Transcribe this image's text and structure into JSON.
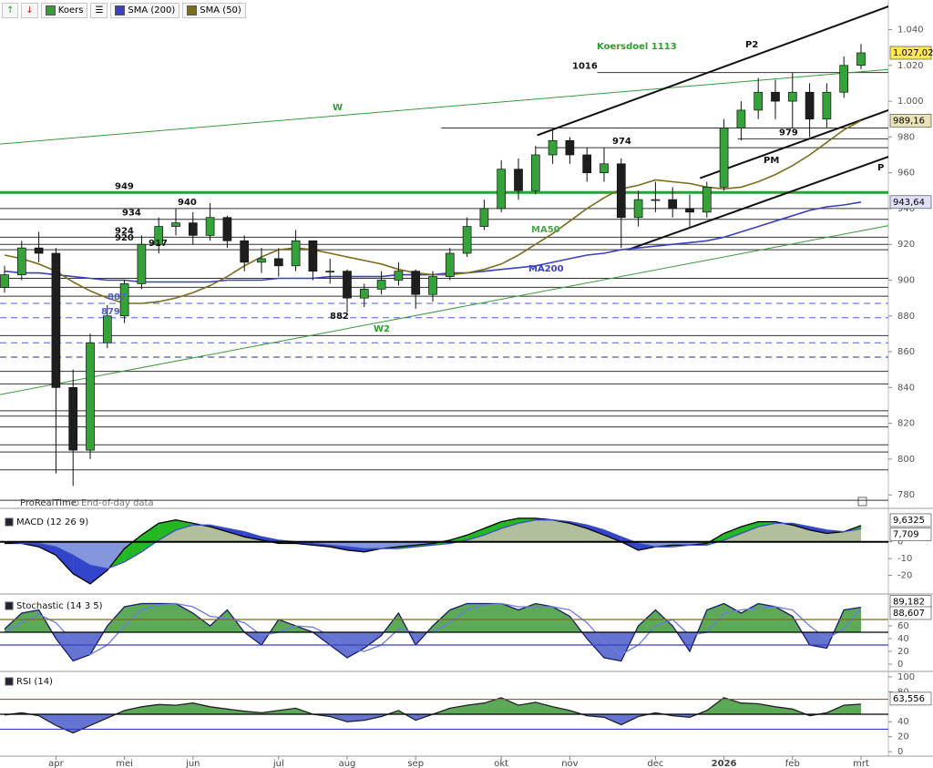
{
  "chart_data": [
    {
      "type": "candlestick",
      "price_label": "Koers",
      "source": "ProRealTime",
      "source_note": "End-of-day data",
      "open": [
        896,
        903,
        918,
        915,
        840,
        805,
        865,
        880,
        898,
        920,
        930,
        932,
        925,
        935,
        922,
        910,
        912,
        908,
        922,
        905,
        905,
        890,
        895,
        900,
        905,
        892,
        902,
        915,
        930,
        940,
        962,
        950,
        970,
        978,
        970,
        960,
        965,
        935,
        945,
        945,
        940,
        938,
        952,
        985,
        995,
        1005,
        1000,
        1005,
        990,
        1005,
        1020
      ],
      "high": [
        908,
        922,
        927,
        918,
        850,
        870,
        886,
        900,
        925,
        935,
        940,
        938,
        943,
        936,
        925,
        918,
        918,
        928,
        922,
        912,
        906,
        898,
        905,
        910,
        906,
        905,
        918,
        935,
        945,
        967,
        968,
        975,
        984,
        980,
        974,
        974,
        968,
        950,
        955,
        952,
        948,
        955,
        990,
        1000,
        1013,
        1012,
        1016,
        1010,
        1010,
        1025,
        1032
      ],
      "low": [
        893,
        900,
        910,
        792,
        785,
        800,
        862,
        876,
        895,
        915,
        925,
        920,
        922,
        918,
        905,
        904,
        902,
        905,
        900,
        898,
        882,
        885,
        892,
        897,
        884,
        888,
        900,
        913,
        928,
        938,
        945,
        948,
        965,
        965,
        955,
        955,
        918,
        930,
        938,
        935,
        930,
        935,
        950,
        978,
        990,
        990,
        985,
        980,
        985,
        1002,
        1018
      ],
      "close": [
        903,
        918,
        915,
        840,
        805,
        865,
        880,
        898,
        920,
        930,
        932,
        925,
        935,
        922,
        910,
        912,
        908,
        922,
        905,
        905,
        890,
        895,
        900,
        905,
        892,
        902,
        915,
        930,
        940,
        962,
        950,
        970,
        978,
        970,
        960,
        965,
        935,
        945,
        945,
        940,
        938,
        952,
        985,
        995,
        1005,
        1000,
        1005,
        990,
        1005,
        1020,
        1027.02
      ],
      "up_color": "#35a33a",
      "down_color": "#1e1e1e",
      "last_label": "1.027,02",
      "last_color": "#ffe94d",
      "overlays": [
        {
          "name": "SMA (200)",
          "color": "#3b3fc0",
          "last_label": "943,64",
          "values": [
            905,
            904,
            904,
            903,
            902,
            901,
            900,
            900,
            899,
            899,
            899,
            899,
            899,
            900,
            900,
            900,
            901,
            901,
            901,
            902,
            902,
            902,
            902,
            903,
            903,
            903,
            904,
            904,
            905,
            906,
            907,
            908,
            910,
            912,
            914,
            915,
            917,
            918,
            919,
            920,
            921,
            922,
            924,
            927,
            930,
            933,
            936,
            939,
            941,
            942,
            943.64
          ]
        },
        {
          "name": "SMA (50)",
          "color": "#7b6d1e",
          "last_label": "989,16",
          "values": [
            914,
            912,
            909,
            905,
            899,
            894,
            890,
            887,
            887,
            888,
            890,
            893,
            897,
            902,
            908,
            913,
            917,
            918,
            917,
            915,
            913,
            911,
            909,
            906,
            904,
            903,
            903,
            904,
            906,
            909,
            914,
            920,
            926,
            933,
            940,
            946,
            951,
            953,
            956,
            955,
            954,
            952,
            951,
            952,
            955,
            959,
            964,
            970,
            977,
            984,
            989.16
          ]
        }
      ],
      "ylim": [
        774,
        1054
      ],
      "yticks": [
        {
          "value": 1040,
          "label": "1.040"
        },
        {
          "value": 1020,
          "label": "1.020"
        },
        {
          "value": 1000,
          "label": "1.000"
        },
        980,
        960,
        940,
        920,
        900,
        880,
        860,
        840,
        820,
        800,
        780
      ],
      "levels": [
        {
          "value": 1016,
          "labeled": true,
          "start": 34.6
        },
        {
          "value": 985,
          "start": 25.5
        },
        {
          "value": 979,
          "labeled": true,
          "start": 42.8
        },
        {
          "value": 974,
          "labeled": true,
          "start": 31
        },
        {
          "value": 949,
          "labeled": true,
          "color": "#2ea02e",
          "width": 3
        },
        {
          "value": 940,
          "labeled": true
        },
        {
          "value": 934,
          "labeled": true
        },
        {
          "value": 924,
          "labeled": true
        },
        {
          "value": 920,
          "labeled": true
        },
        {
          "value": 917,
          "labeled": true
        },
        {
          "value": 901
        },
        {
          "value": 896
        },
        {
          "value": 891
        },
        {
          "value": 887,
          "labeled": true,
          "dashed": true,
          "color": "#5560c8"
        },
        {
          "value": 879,
          "labeled": true,
          "dashed": true,
          "color": "#5560c8"
        },
        {
          "value": 869
        },
        {
          "value": 865,
          "dashed": true,
          "color": "#5560c8"
        },
        {
          "value": 857,
          "dashed": true,
          "color": "#2a2f8a"
        },
        {
          "value": 849
        },
        {
          "value": 842
        },
        {
          "value": 827
        },
        {
          "value": 824
        },
        {
          "value": 818
        },
        {
          "value": 808
        },
        {
          "value": 804
        },
        {
          "value": 794
        },
        {
          "value": 777
        }
      ],
      "trendlines": [
        {
          "from": [
            -0.3,
            976
          ],
          "to": [
            51.9,
            1018
          ],
          "color": "#3a9a3a",
          "width": 1
        },
        {
          "from": [
            -0.3,
            836
          ],
          "to": [
            51.9,
            931
          ],
          "color": "#3a9a3a",
          "width": 1
        },
        {
          "from": [
            31.1,
            981
          ],
          "to": [
            51.9,
            1054
          ],
          "color": "#111111",
          "width": 2
        },
        {
          "from": [
            40.6,
            957
          ],
          "to": [
            51.9,
            996
          ],
          "color": "#111111",
          "width": 2
        },
        {
          "from": [
            36.4,
            917
          ],
          "to": [
            51.9,
            970
          ],
          "color": "#111111",
          "width": 2
        }
      ],
      "annotations": [
        {
          "text": "Koersdoel 1113",
          "color": "#2e9e2e"
        },
        {
          "text": "P2",
          "color": "#111111"
        },
        {
          "text": "W",
          "color": "#2e9e2e"
        },
        {
          "text": "W2",
          "color": "#2e9e2e"
        },
        {
          "text": "MA50",
          "color": "#4aa84a"
        },
        {
          "text": "MA200",
          "color": "#3b3fc0"
        },
        {
          "text": "PM",
          "color": "#111111"
        },
        {
          "text": "P",
          "color": "#111111"
        }
      ],
      "marked_low": 882
    },
    {
      "type": "macd",
      "title": "MACD (12 26 9)",
      "ylim": [
        -30,
        17.2
      ],
      "yticks": [
        0,
        -10,
        -20
      ],
      "levels": [
        0
      ],
      "level_colors": [
        "#000000"
      ],
      "fill_baseline": 0,
      "fill_colors": [
        "#a3b48c",
        "#6f84d6"
      ],
      "band_colors": [
        "#22b822",
        "#3344cc"
      ],
      "series": [
        {
          "color": "#000000",
          "last_label": "9,6325",
          "values": [
            -1,
            -1,
            -3,
            -8,
            -19,
            -25,
            -17,
            -4,
            4,
            11,
            13,
            11,
            9,
            6,
            3,
            1,
            -1,
            -1,
            -2,
            -3,
            -5,
            -6,
            -4,
            -3,
            -2,
            -1,
            1,
            4,
            8,
            12,
            14,
            14,
            13,
            11,
            8,
            4,
            0,
            -5,
            -3,
            -2,
            -2,
            -1,
            5,
            9,
            12,
            12,
            10,
            7,
            5,
            6,
            9.6325
          ]
        },
        {
          "color": "#3a4fc4",
          "last_label": "7,709",
          "values": [
            0,
            -1,
            -1,
            -3,
            -8,
            -14,
            -16,
            -12,
            -6,
            1,
            7,
            10,
            10,
            8,
            6,
            3,
            1,
            0,
            -1,
            -2,
            -3,
            -4,
            -4,
            -4,
            -3,
            -2,
            -1,
            1,
            4,
            8,
            11,
            13,
            13,
            12,
            10,
            7,
            3,
            -1,
            -3,
            -3,
            -2,
            -2,
            1,
            5,
            9,
            11,
            11,
            9,
            7,
            6,
            7.709
          ]
        }
      ]
    },
    {
      "type": "stochastic",
      "title": "Stochastic (14 3 5)",
      "ylim": [
        -8.6,
        105.7
      ],
      "yticks": [
        60,
        40,
        20,
        0
      ],
      "levels": [
        70,
        50,
        30
      ],
      "level_colors": [
        "#7b6d1e",
        "#000000",
        "#3b3fc0"
      ],
      "fill_baseline": 50,
      "fill_colors": [
        "#3f9a3a",
        "#4a5cc8"
      ],
      "series": [
        {
          "color": "#1b1b6a",
          "last_label": "89,182",
          "values": [
            55,
            80,
            85,
            40,
            5,
            15,
            60,
            90,
            95,
            95,
            95,
            80,
            60,
            85,
            50,
            30,
            70,
            60,
            50,
            30,
            10,
            25,
            45,
            80,
            30,
            60,
            85,
            95,
            95,
            95,
            85,
            95,
            90,
            75,
            40,
            10,
            5,
            60,
            85,
            60,
            20,
            85,
            95,
            80,
            95,
            90,
            75,
            30,
            25,
            85,
            89.182
          ]
        },
        {
          "color": "#6b7be6",
          "last_label": "88,607",
          "values": [
            50,
            65,
            78,
            65,
            35,
            15,
            30,
            60,
            85,
            93,
            95,
            90,
            75,
            72,
            65,
            45,
            50,
            60,
            58,
            45,
            25,
            20,
            30,
            55,
            50,
            50,
            65,
            85,
            93,
            95,
            90,
            90,
            90,
            85,
            65,
            35,
            15,
            30,
            60,
            70,
            45,
            50,
            80,
            85,
            88,
            90,
            85,
            60,
            40,
            55,
            88.607
          ]
        }
      ]
    },
    {
      "type": "rsi",
      "title": "RSI (14)",
      "ylim": [
        -6,
        106
      ],
      "yticks": [
        100,
        80,
        40,
        20,
        0
      ],
      "levels": [
        70,
        50,
        30
      ],
      "level_colors": [
        "#7b6d1e",
        "#000000",
        "#3b3fc0"
      ],
      "fill_baseline": 50,
      "fill_colors": [
        "#3f9a3a",
        "#4a5cc8"
      ],
      "categories": [
        null,
        null,
        null,
        "apr",
        null,
        null,
        null,
        "mei",
        null,
        null,
        null,
        "jun",
        null,
        null,
        null,
        null,
        "jul",
        null,
        null,
        null,
        "aug",
        null,
        null,
        null,
        "sep",
        null,
        null,
        null,
        null,
        "okt",
        null,
        null,
        null,
        "nov",
        null,
        null,
        null,
        null,
        "dec",
        null,
        null,
        null,
        "2026",
        null,
        null,
        null,
        "feb",
        null,
        null,
        null,
        "mrt"
      ],
      "series": [
        {
          "color": "#222222",
          "last_label": "63,556",
          "values": [
            49,
            52,
            48,
            35,
            25,
            35,
            45,
            55,
            60,
            63,
            62,
            65,
            60,
            57,
            54,
            52,
            55,
            58,
            50,
            47,
            40,
            42,
            47,
            55,
            42,
            50,
            58,
            62,
            65,
            72,
            62,
            66,
            60,
            55,
            48,
            46,
            36,
            47,
            52,
            48,
            46,
            55,
            72,
            65,
            64,
            60,
            57,
            48,
            52,
            62,
            63.556
          ]
        }
      ]
    }
  ]
}
